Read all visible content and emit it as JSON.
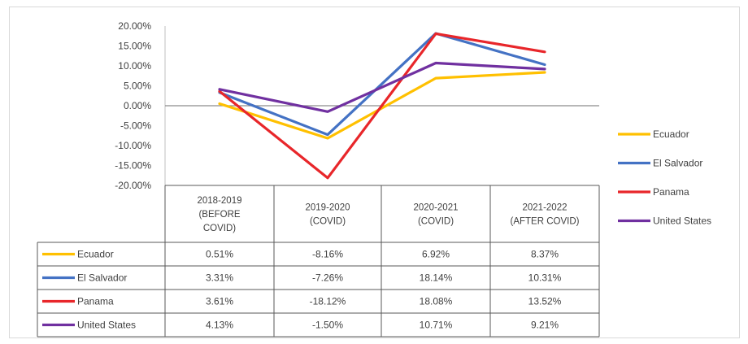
{
  "chart_data": {
    "type": "line",
    "categories": [
      [
        "2018-2019",
        "(BEFORE",
        "COVID)"
      ],
      [
        "2019-2020",
        "(COVID)"
      ],
      [
        "2020-2021",
        "(COVID)"
      ],
      [
        "2021-2022",
        "(AFTER COVID)"
      ]
    ],
    "series": [
      {
        "name": "Ecuador",
        "color": "#FFC000",
        "values": [
          0.51,
          -8.16,
          6.92,
          8.37
        ],
        "labels": [
          "0.51%",
          "-8.16%",
          "6.92%",
          "8.37%"
        ]
      },
      {
        "name": "El Salvador",
        "color": "#4472C4",
        "values": [
          3.31,
          -7.26,
          18.14,
          10.31
        ],
        "labels": [
          "3.31%",
          "-7.26%",
          "18.14%",
          "10.31%"
        ]
      },
      {
        "name": "Panama",
        "color": "#E8262A",
        "values": [
          3.61,
          -18.12,
          18.08,
          13.52
        ],
        "labels": [
          "3.61%",
          "-18.12%",
          "18.08%",
          "13.52%"
        ]
      },
      {
        "name": "United States",
        "color": "#7030A0",
        "values": [
          4.13,
          -1.5,
          10.71,
          9.21
        ],
        "labels": [
          "4.13%",
          "-1.50%",
          "10.71%",
          "9.21%"
        ]
      }
    ],
    "ylim": [
      -20,
      20
    ],
    "yticks": [
      "20.00%",
      "15.00%",
      "10.00%",
      "5.00%",
      "0.00%",
      "-5.00%",
      "-10.00%",
      "-15.00%",
      "-20.00%"
    ],
    "legend_position": "right",
    "grid": false,
    "data_table": true
  }
}
